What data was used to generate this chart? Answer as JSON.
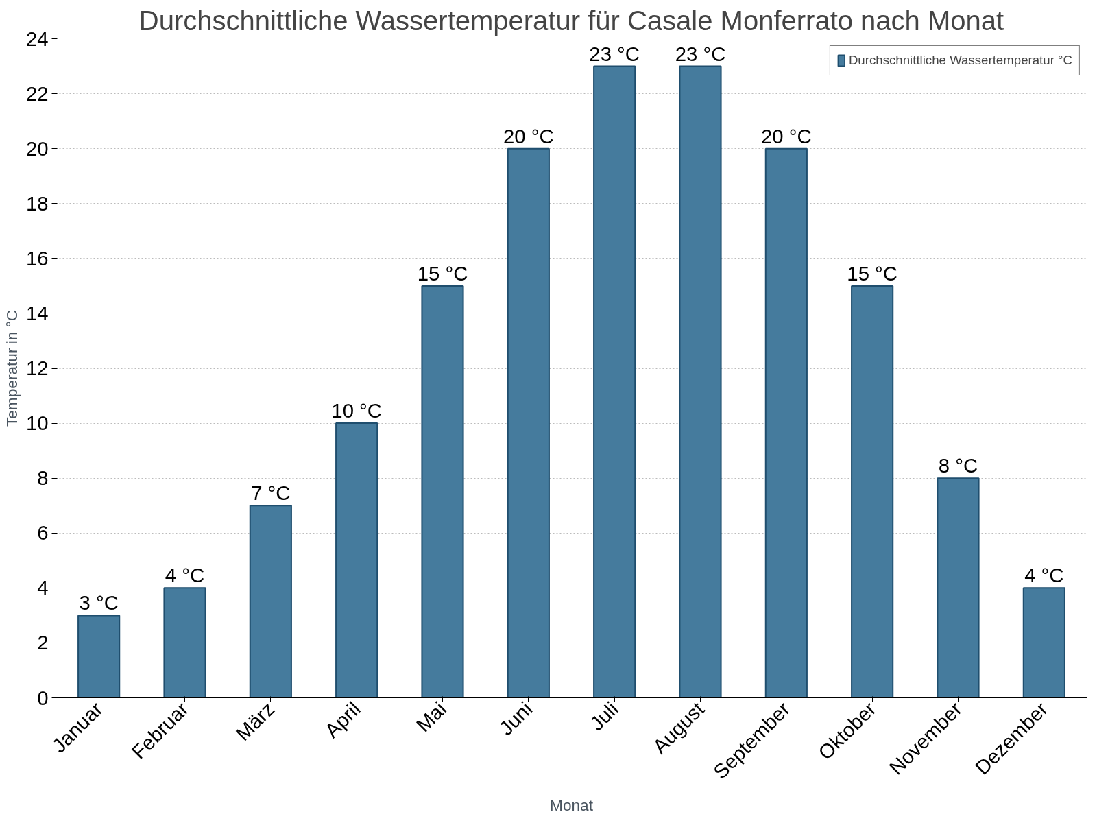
{
  "chart_data": {
    "type": "bar",
    "title": "Durchschnittliche Wassertemperatur für Casale Monferrato nach Monat",
    "xlabel": "Monat",
    "ylabel": "Temperatur in °C",
    "categories": [
      "Januar",
      "Februar",
      "März",
      "April",
      "Mai",
      "Juni",
      "Juli",
      "August",
      "September",
      "Oktober",
      "November",
      "Dezember"
    ],
    "series": [
      {
        "name": "Durchschnittliche Wassertemperatur °C",
        "color": "#457b9d",
        "values": [
          3,
          4,
          7,
          10,
          15,
          20,
          23,
          23,
          20,
          15,
          8,
          4
        ],
        "value_labels": [
          "3 °C",
          "4 °C",
          "7 °C",
          "10 °C",
          "15 °C",
          "20 °C",
          "23 °C",
          "23 °C",
          "20 °C",
          "15 °C",
          "8 °C",
          "4 °C"
        ]
      }
    ],
    "ylim": [
      0,
      24
    ],
    "yticks": [
      0,
      2,
      4,
      6,
      8,
      10,
      12,
      14,
      16,
      18,
      20,
      22,
      24
    ],
    "grid": "y",
    "legend": "top right"
  }
}
